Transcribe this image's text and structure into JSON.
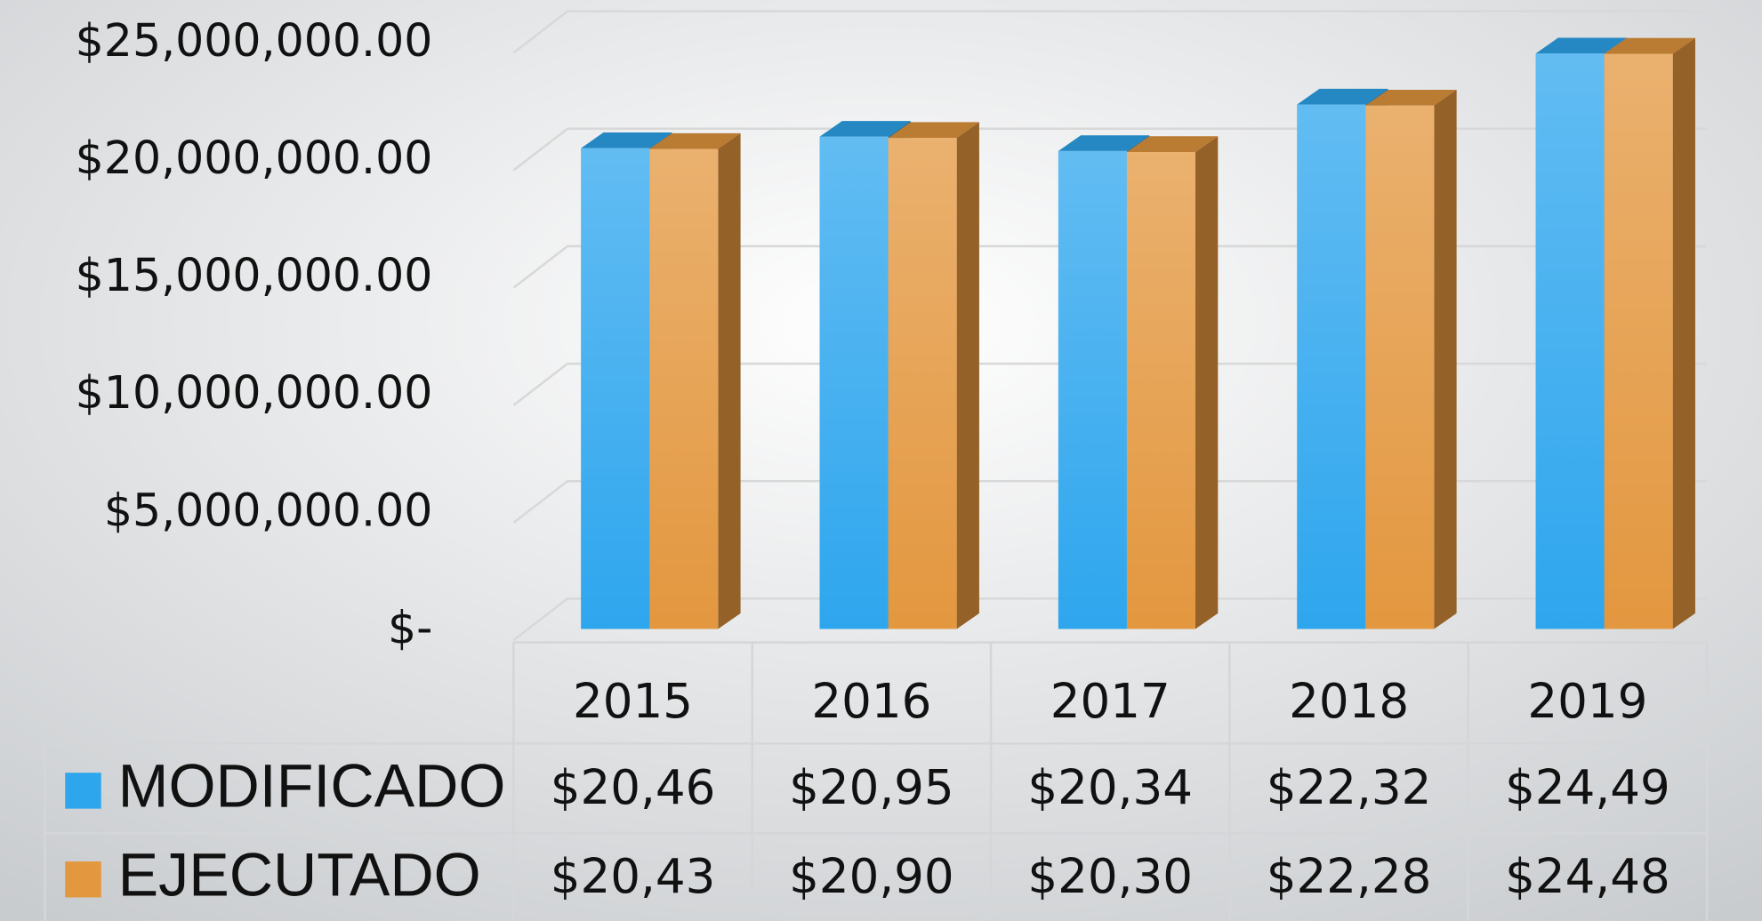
{
  "chart_data": {
    "type": "bar3d",
    "categories": [
      "2015",
      "2016",
      "2017",
      "2018",
      "2019"
    ],
    "series": [
      {
        "name": "MODIFICADO",
        "color": "#2ea6ee",
        "values": [
          20460000,
          20950000,
          20340000,
          22320000,
          24490000
        ],
        "value_labels": [
          "$20,46",
          "$20,95",
          "$20,34",
          "$22,32",
          "$24,49"
        ]
      },
      {
        "name": "EJECUTADO",
        "color": "#e3973f",
        "values": [
          20430000,
          20900000,
          20300000,
          22280000,
          24480000
        ],
        "value_labels": [
          "$20,43",
          "$20,90",
          "$20,30",
          "$22,28",
          "$24,48"
        ]
      }
    ],
    "ylim": [
      0,
      25000000
    ],
    "yticks": [
      {
        "value": 0,
        "label": "$-"
      },
      {
        "value": 5000000,
        "label": "$5,000,000.00"
      },
      {
        "value": 10000000,
        "label": "$10,000,000.00"
      },
      {
        "value": 15000000,
        "label": "$15,000,000.00"
      },
      {
        "value": 20000000,
        "label": "$20,000,000.00"
      },
      {
        "value": 25000000,
        "label": "$25,000,000.00"
      }
    ],
    "grid": true,
    "data_table": true
  }
}
